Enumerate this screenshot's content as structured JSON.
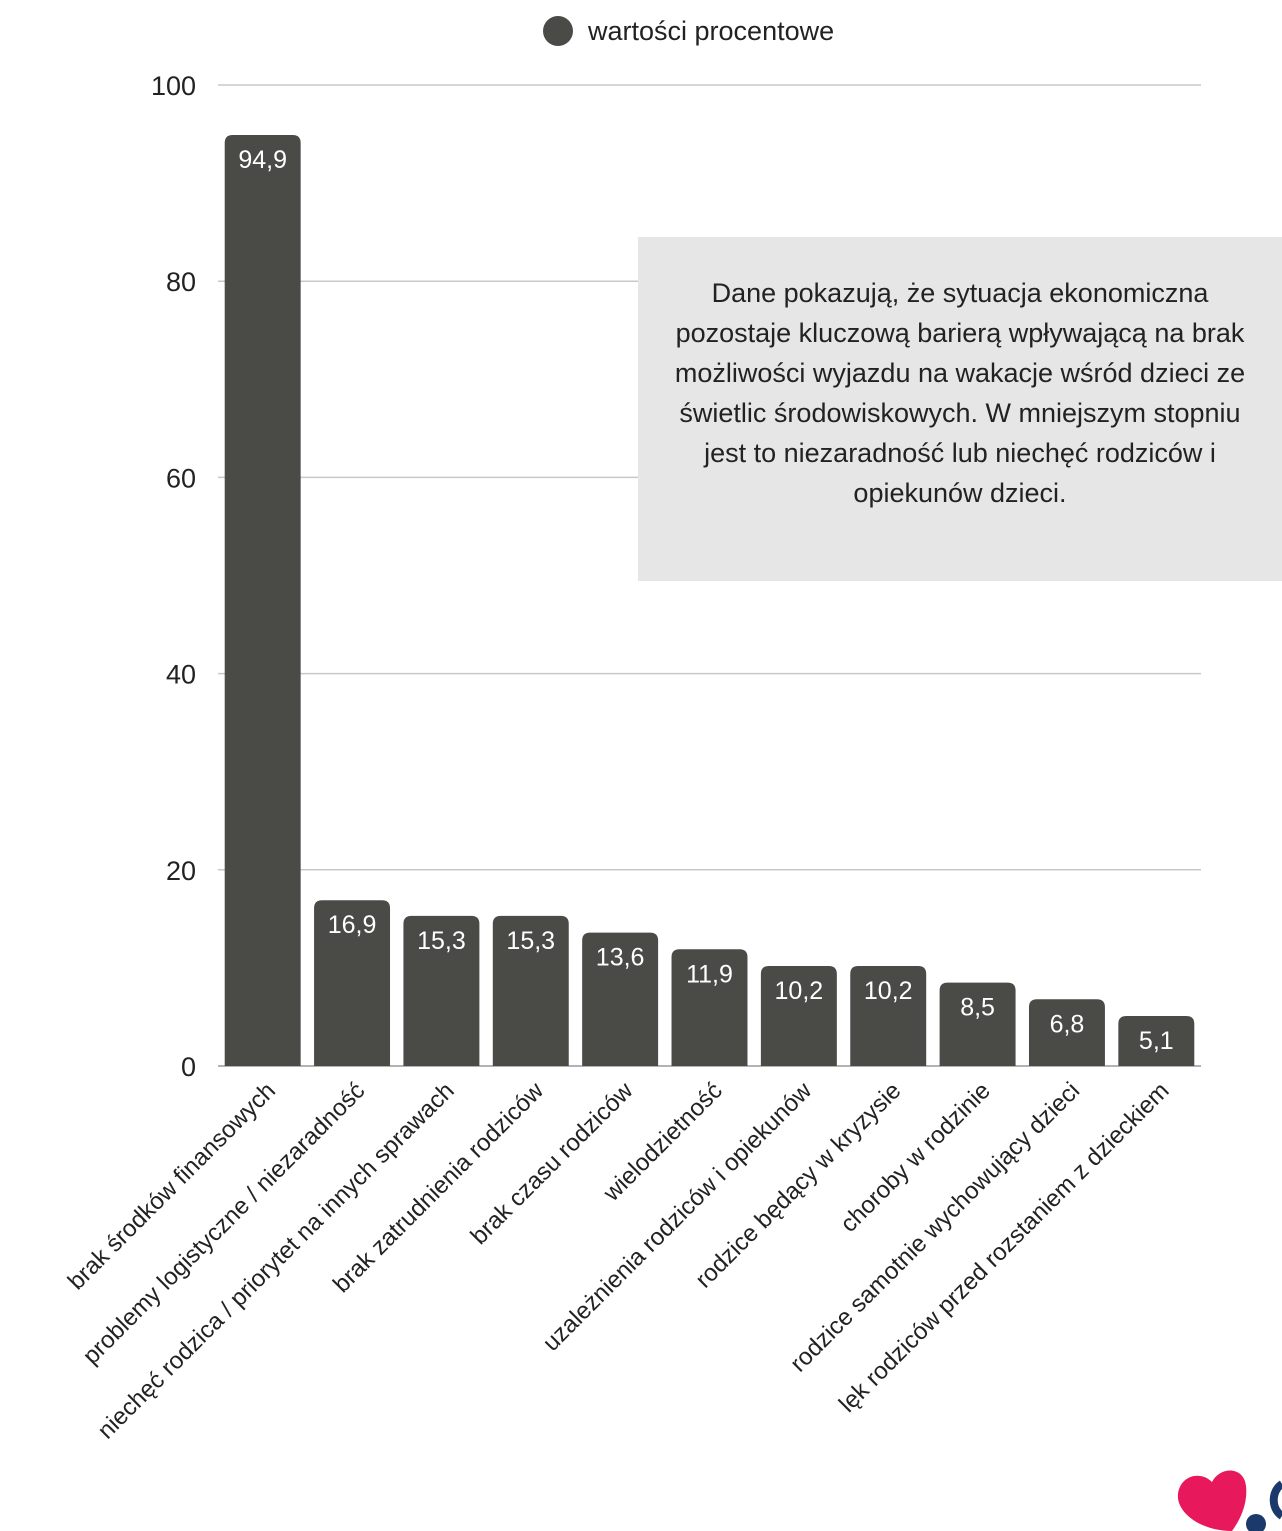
{
  "chart_data": {
    "type": "bar",
    "legend": {
      "label": "wartości procentowe",
      "position": "top"
    },
    "series": [
      {
        "name": "wartości procentowe",
        "color": "#4a4a47"
      }
    ],
    "categories": [
      "brak środków finansowych",
      "problemy logistyczne / niezaradność",
      "niechęć rodzica / priorytet na innych sprawach",
      "brak zatrudnienia rodziców",
      "brak czasu rodziców",
      "wielodzietność",
      "uzależnienia rodziców i opiekunów",
      "rodzice będący w kryzysie",
      "choroby w rodzinie",
      "rodzice samotnie wychowujący dzieci",
      "lęk rodziców przed rozstaniem z dzieckiem"
    ],
    "values": [
      94.9,
      16.9,
      15.3,
      15.3,
      13.6,
      11.9,
      10.2,
      10.2,
      8.5,
      6.8,
      5.1
    ],
    "value_labels": [
      "94,9",
      "16,9",
      "15,3",
      "15,3",
      "13,6",
      "11,9",
      "10,2",
      "10,2",
      "8,5",
      "6,8",
      "5,1"
    ],
    "ylim": [
      0,
      100
    ],
    "yticks": [
      "0",
      "20",
      "40",
      "60",
      "80",
      "100"
    ],
    "ytick_values": [
      0,
      20,
      40,
      60,
      80,
      100
    ],
    "grid": true,
    "colors": {
      "bar": "#4a4a47",
      "grid": "#c8c8c8",
      "label_inside": "#ffffff",
      "label_outside": "#4a4a47"
    }
  },
  "note": {
    "text": "Dane pokazują, że sytuacja ekonomiczna pozostaje kluczową barierą wpływającą na brak możliwości wyjazdu na wakacje wśród dzieci ze świetlic środowiskowych. W mniejszym stopniu jest to niezaradność lub niechęć rodziców i opiekunów dzieci."
  }
}
